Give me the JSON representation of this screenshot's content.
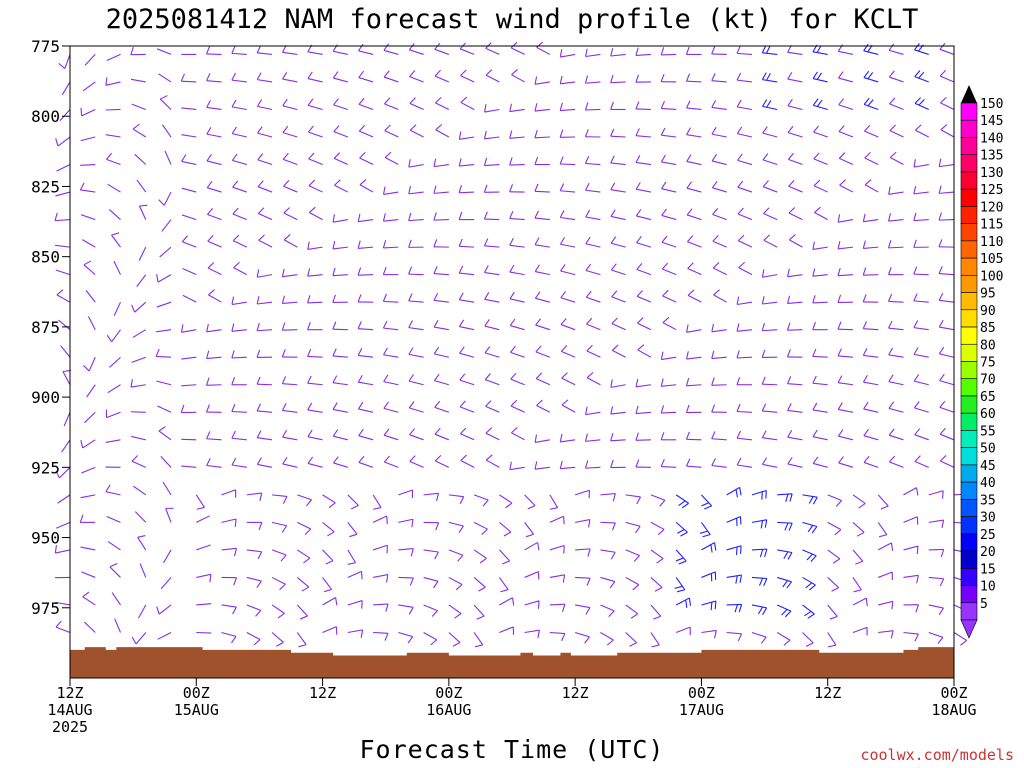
{
  "chart_data": {
    "type": "wind-barb-time-height",
    "title": "2025081412 NAM forecast wind profile (kt) for KCLT",
    "xlabel": "Forecast Time (UTC)",
    "ylabel": "",
    "y_ticks": [
      775,
      800,
      825,
      850,
      875,
      900,
      925,
      950,
      975
    ],
    "ylim": [
      775,
      1000
    ],
    "x_ticks": [
      {
        "hour": 0,
        "line1": "12Z",
        "line2": "14AUG",
        "line3": "2025"
      },
      {
        "hour": 12,
        "line1": "00Z",
        "line2": "15AUG",
        "line3": ""
      },
      {
        "hour": 24,
        "line1": "12Z",
        "line2": "",
        "line3": ""
      },
      {
        "hour": 36,
        "line1": "00Z",
        "line2": "16AUG",
        "line3": ""
      },
      {
        "hour": 48,
        "line1": "12Z",
        "line2": "",
        "line3": ""
      },
      {
        "hour": 60,
        "line1": "00Z",
        "line2": "17AUG",
        "line3": ""
      },
      {
        "hour": 72,
        "line1": "12Z",
        "line2": "",
        "line3": ""
      },
      {
        "hour": 84,
        "line1": "00Z",
        "line2": "18AUG",
        "line3": ""
      }
    ],
    "xlim_hours": [
      0,
      84
    ],
    "colorbar": {
      "label_values": [
        150,
        145,
        140,
        135,
        130,
        125,
        120,
        115,
        110,
        105,
        100,
        95,
        90,
        85,
        80,
        75,
        70,
        65,
        60,
        55,
        50,
        45,
        40,
        35,
        30,
        25,
        20,
        15,
        10,
        5
      ],
      "colors": [
        "#ff00ff",
        "#ff00cc",
        "#ff0099",
        "#ff0066",
        "#ff0033",
        "#ff0000",
        "#ff2200",
        "#ff4400",
        "#ff6600",
        "#ff8800",
        "#ff9900",
        "#ffbb00",
        "#ffdd00",
        "#ffff00",
        "#ddff00",
        "#99ff00",
        "#55ff00",
        "#22ee22",
        "#00ee66",
        "#00eebb",
        "#00dddd",
        "#00aaee",
        "#0088ff",
        "#0055ff",
        "#0033ff",
        "#0000ff",
        "#0000cc",
        "#3300ff",
        "#7700ff",
        "#9933ff"
      ]
    },
    "terrain_pressure": [
      {
        "hour": 0,
        "p": 990
      },
      {
        "hour": 1.4,
        "p": 989
      },
      {
        "hour": 3.4,
        "p": 990
      },
      {
        "hour": 4.4,
        "p": 989
      },
      {
        "hour": 12.6,
        "p": 990
      },
      {
        "hour": 21,
        "p": 991
      },
      {
        "hour": 25,
        "p": 992
      },
      {
        "hour": 32,
        "p": 991
      },
      {
        "hour": 36,
        "p": 992
      },
      {
        "hour": 42.8,
        "p": 991
      },
      {
        "hour": 44,
        "p": 992
      },
      {
        "hour": 46.6,
        "p": 991
      },
      {
        "hour": 47.6,
        "p": 992
      },
      {
        "hour": 52,
        "p": 991
      },
      {
        "hour": 60,
        "p": 990
      },
      {
        "hour": 71.2,
        "p": 991
      },
      {
        "hour": 79.2,
        "p": 990
      },
      {
        "hour": 80.6,
        "p": 989
      },
      {
        "hour": 84,
        "p": 989
      }
    ],
    "barb_color_dominant": "#8a2be2",
    "barb_color_fast": "#2020ff",
    "terrain_color": "#a0522d"
  },
  "footer": {
    "credit": "coolwx.com/models"
  }
}
